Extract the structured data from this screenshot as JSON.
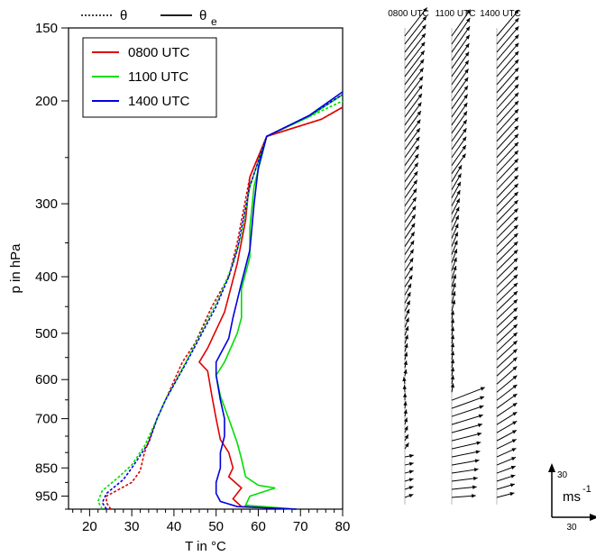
{
  "chart_data": [
    {
      "type": "line",
      "xlabel": "T in °C",
      "ylabel": "p in hPa",
      "xlim": [
        15,
        80
      ],
      "ylim": [
        1000,
        150
      ],
      "y_scale": "log",
      "x_ticks": [
        "20",
        "30",
        "40",
        "50",
        "60",
        "70",
        "80"
      ],
      "y_ticks": [
        "150",
        "200",
        "300",
        "400",
        "500",
        "600",
        "700",
        "850",
        "950"
      ],
      "line_style_legend": [
        {
          "label": "θ",
          "style": "dotted"
        },
        {
          "label": "θ",
          "subscript": "e",
          "style": "solid"
        }
      ],
      "legend": {
        "position": "top-left"
      },
      "series": [
        {
          "name": "0800 UTC",
          "color": "#e00000",
          "theta": [
            [
              25,
              1000
            ],
            [
              24,
              975
            ],
            [
              24,
              950
            ],
            [
              30,
              900
            ],
            [
              32,
              860
            ],
            [
              33,
              800
            ],
            [
              36,
              700
            ],
            [
              38,
              650
            ],
            [
              42,
              560
            ],
            [
              45,
              520
            ],
            [
              49,
              450
            ],
            [
              53,
              400
            ],
            [
              55,
              350
            ],
            [
              58,
              270
            ],
            [
              62,
              230
            ],
            [
              75,
              215
            ],
            [
              80,
              205
            ]
          ],
          "theta_e": [
            [
              69,
              1000
            ],
            [
              56,
              990
            ],
            [
              54,
              960
            ],
            [
              56,
              920
            ],
            [
              53,
              880
            ],
            [
              54,
              850
            ],
            [
              53,
              800
            ],
            [
              51,
              760
            ],
            [
              50,
              700
            ],
            [
              49,
              640
            ],
            [
              48,
              580
            ],
            [
              46,
              560
            ],
            [
              48,
              530
            ],
            [
              52,
              460
            ],
            [
              55,
              380
            ],
            [
              57,
              320
            ],
            [
              58,
              270
            ],
            [
              62,
              230
            ],
            [
              75,
              215
            ],
            [
              80,
              205
            ]
          ]
        },
        {
          "name": "1100 UTC",
          "color": "#00dd00",
          "theta": [
            [
              23,
              1000
            ],
            [
              22,
              970
            ],
            [
              23,
              930
            ],
            [
              27,
              880
            ],
            [
              30,
              840
            ],
            [
              33,
              780
            ],
            [
              36,
              700
            ],
            [
              38,
              650
            ],
            [
              44,
              540
            ],
            [
              47,
              490
            ],
            [
              51,
              430
            ],
            [
              54,
              380
            ],
            [
              56,
              340
            ],
            [
              58,
              280
            ],
            [
              62,
              230
            ],
            [
              72,
              213
            ],
            [
              80,
              200
            ]
          ],
          "theta_e": [
            [
              69,
              1000
            ],
            [
              57,
              985
            ],
            [
              58,
              950
            ],
            [
              64,
              920
            ],
            [
              60,
              910
            ],
            [
              57,
              880
            ],
            [
              56,
              820
            ],
            [
              55,
              770
            ],
            [
              53,
              700
            ],
            [
              51,
              640
            ],
            [
              50,
              590
            ],
            [
              52,
              560
            ],
            [
              55,
              500
            ],
            [
              56,
              470
            ],
            [
              56,
              420
            ],
            [
              58,
              370
            ],
            [
              58,
              330
            ],
            [
              59,
              280
            ],
            [
              62,
              230
            ],
            [
              72,
              213
            ],
            [
              80,
              195
            ]
          ]
        },
        {
          "name": "1400 UTC",
          "color": "#0000dd",
          "theta": [
            [
              24,
              1000
            ],
            [
              23,
              975
            ],
            [
              24,
              940
            ],
            [
              28,
              890
            ],
            [
              30,
              850
            ],
            [
              34,
              770
            ],
            [
              36,
              700
            ],
            [
              38,
              650
            ],
            [
              43,
              560
            ],
            [
              46,
              510
            ],
            [
              50,
              450
            ],
            [
              53,
              400
            ],
            [
              55,
              360
            ],
            [
              58,
              280
            ],
            [
              62,
              230
            ],
            [
              72,
              212
            ],
            [
              80,
              195
            ]
          ],
          "theta_e": [
            [
              69,
              1000
            ],
            [
              55,
              990
            ],
            [
              51,
              970
            ],
            [
              50,
              940
            ],
            [
              50,
              900
            ],
            [
              51,
              850
            ],
            [
              51,
              800
            ],
            [
              52,
              750
            ],
            [
              52,
              700
            ],
            [
              51,
              650
            ],
            [
              50,
              590
            ],
            [
              50,
              560
            ],
            [
              53,
              510
            ],
            [
              54,
              470
            ],
            [
              56,
              410
            ],
            [
              58,
              360
            ],
            [
              59,
              300
            ],
            [
              60,
              260
            ],
            [
              62,
              230
            ],
            [
              72,
              212
            ],
            [
              80,
              193
            ]
          ]
        }
      ]
    },
    {
      "type": "vector",
      "column_labels": [
        "0800 UTC",
        "1100 UTC",
        "1400 UTC"
      ],
      "reference": {
        "u": 30,
        "v": 30,
        "u_label": "30",
        "v_label": "30",
        "unit": "ms",
        "unit_exp": "-1"
      }
    }
  ]
}
